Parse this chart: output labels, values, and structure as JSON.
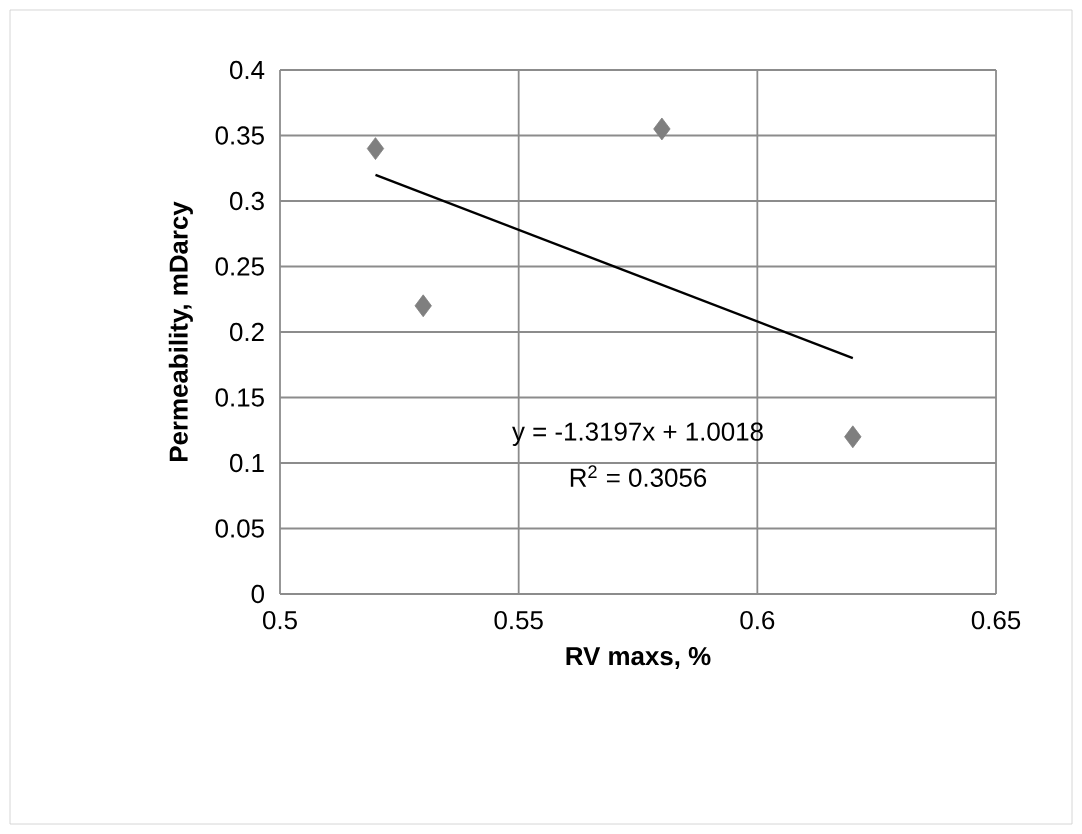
{
  "chart_data": {
    "type": "scatter",
    "xlabel": "RV maxs, %",
    "ylabel": "Permeability, mDarcy",
    "xlim": [
      0.5,
      0.65
    ],
    "ylim": [
      0,
      0.4
    ],
    "xticks": [
      0.5,
      0.55,
      0.6,
      0.65
    ],
    "yticks": [
      0,
      0.05,
      0.1,
      0.15,
      0.2,
      0.25,
      0.3,
      0.35,
      0.4
    ],
    "grid": true,
    "series": [
      {
        "color": "#7f7f7f",
        "marker": "diamond",
        "x": [
          0.52,
          0.53,
          0.58,
          0.62
        ],
        "values": [
          0.34,
          0.22,
          0.355,
          0.12
        ]
      },
      {
        "type": "line",
        "color": "#000000",
        "marker": "none",
        "x": [
          0.52,
          0.62
        ],
        "values": [
          0.32,
          0.18
        ]
      }
    ],
    "annotations": [
      "y = -1.3197x + 1.0018",
      "R$^{2}$ = 0.3056"
    ]
  }
}
